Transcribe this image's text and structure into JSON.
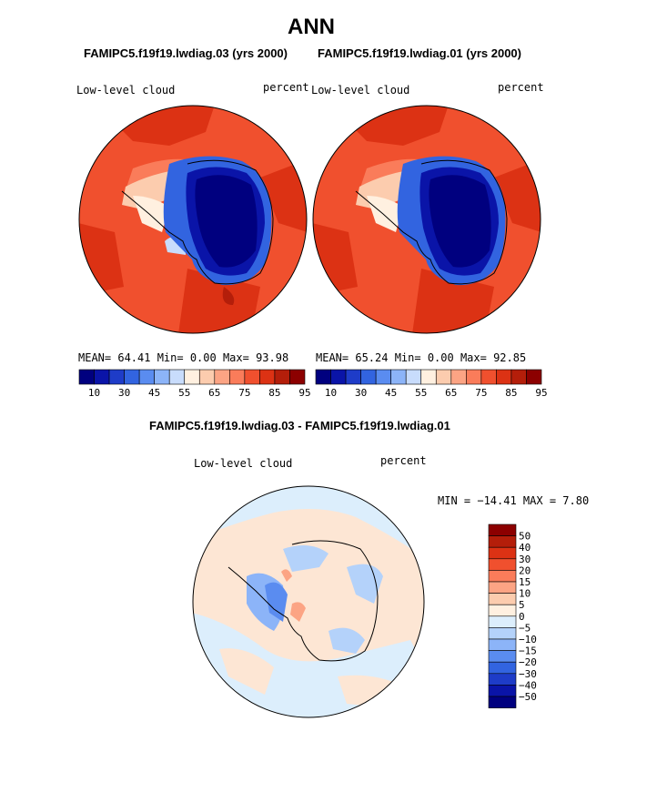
{
  "main_title": "ANN",
  "panel_left": {
    "header": "FAMIPC5.f19f19.lwdiag.03 (yrs 2000)",
    "variable": "Low-level cloud",
    "units": "percent",
    "stats_line": "MEAN=  64.41  Min=   0.00  Max=  93.98"
  },
  "panel_right": {
    "header": "FAMIPC5.f19f19.lwdiag.01 (yrs 2000)",
    "variable": "Low-level cloud",
    "units": "percent",
    "stats_line": "MEAN=  65.24  Min=   0.00  Max=  92.85"
  },
  "abs_colorbar": {
    "colors": [
      "#00007f",
      "#0a14a8",
      "#1e3cc8",
      "#3264e0",
      "#5a8cf0",
      "#8cb4f8",
      "#c8dcfc",
      "#fff0e0",
      "#fcccae",
      "#fca484",
      "#fa7c5a",
      "#f0502e",
      "#dc3214",
      "#b41e0a",
      "#8c0000"
    ],
    "labels": [
      "10",
      "30",
      "45",
      "55",
      "65",
      "75",
      "85",
      "95"
    ]
  },
  "diff_panel": {
    "header": "FAMIPC5.f19f19.lwdiag.03 - FAMIPC5.f19f19.lwdiag.01",
    "variable": "Low-level cloud",
    "units": "percent",
    "minmax_line": "MIN = −14.41  MAX =    7.80"
  },
  "diff_colorbar": {
    "colors": [
      "#8c0000",
      "#b41e0a",
      "#dc3214",
      "#f0502e",
      "#fa7c5a",
      "#fca484",
      "#fcccae",
      "#fff0e0",
      "#dceefc",
      "#b4d2fa",
      "#8cb4f8",
      "#5a8cf0",
      "#3264e0",
      "#1e3cc8",
      "#0a14a8",
      "#00007f"
    ],
    "labels": [
      "50",
      "40",
      "30",
      "20",
      "15",
      "10",
      "5",
      "0",
      "−5",
      "−10",
      "−15",
      "−20",
      "−30",
      "−40",
      "−50"
    ]
  }
}
